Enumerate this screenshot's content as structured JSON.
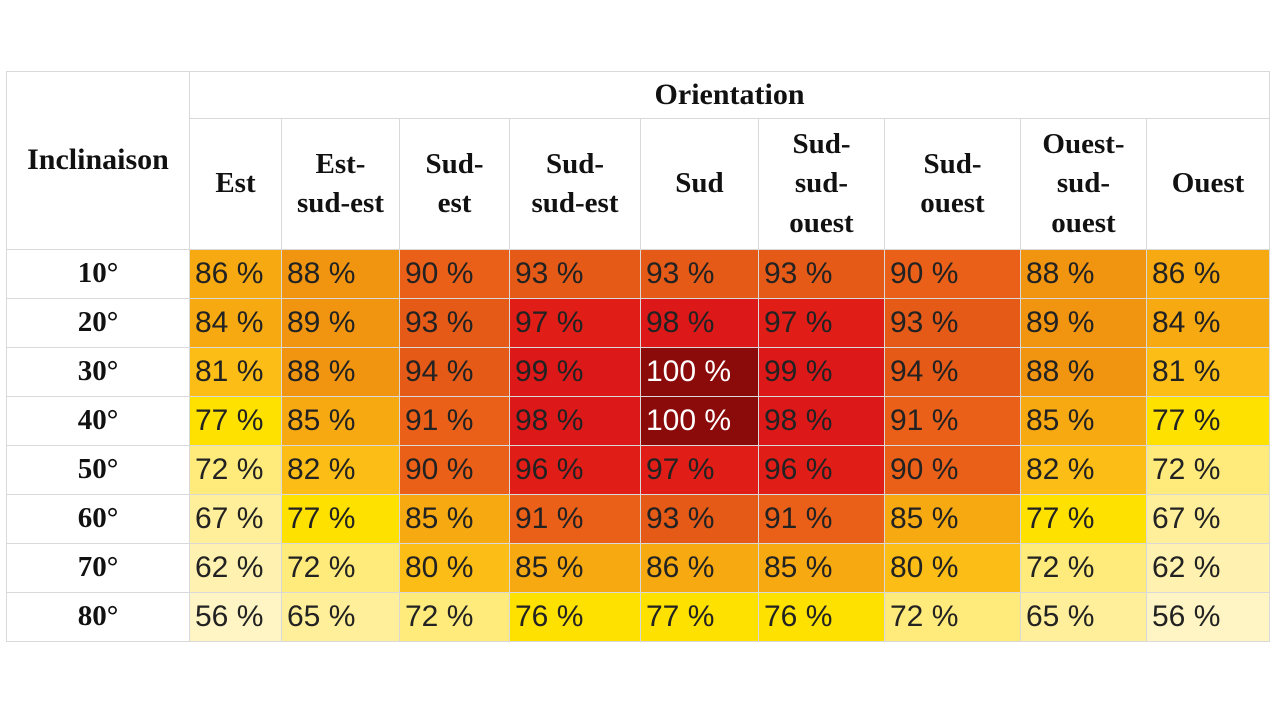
{
  "chart_data": {
    "type": "heatmap",
    "title": "",
    "row_header": "Inclinaison",
    "column_group_header": "Orientation",
    "columns": [
      "Est",
      "Est-\nsud-est",
      "Sud-\nest",
      "Sud-\nsud-est",
      "Sud",
      "Sud-\nsud-\nouest",
      "Sud-\nouest",
      "Ouest-\nsud-\nouest",
      "Ouest"
    ],
    "rows": [
      "10°",
      "20°",
      "30°",
      "40°",
      "50°",
      "60°",
      "70°",
      "80°"
    ],
    "unit": "%",
    "values": [
      [
        86,
        88,
        90,
        93,
        93,
        93,
        90,
        88,
        86
      ],
      [
        84,
        89,
        93,
        97,
        98,
        97,
        93,
        89,
        84
      ],
      [
        81,
        88,
        94,
        99,
        100,
        99,
        94,
        88,
        81
      ],
      [
        77,
        85,
        91,
        98,
        100,
        98,
        91,
        85,
        77
      ],
      [
        72,
        82,
        90,
        96,
        97,
        96,
        90,
        82,
        72
      ],
      [
        67,
        77,
        85,
        91,
        93,
        91,
        85,
        77,
        67
      ],
      [
        62,
        72,
        80,
        85,
        86,
        85,
        80,
        72,
        62
      ],
      [
        56,
        65,
        72,
        76,
        77,
        76,
        72,
        65,
        56
      ]
    ],
    "color_scale": [
      {
        "value": 56,
        "color": "#fff5c4"
      },
      {
        "value": 62,
        "color": "#fff1b0"
      },
      {
        "value": 67,
        "color": "#ffee9a"
      },
      {
        "value": 72,
        "color": "#ffeb7c"
      },
      {
        "value": 77,
        "color": "#ffe100"
      },
      {
        "value": 80,
        "color": "#fcbd16"
      },
      {
        "value": 85,
        "color": "#f6a911"
      },
      {
        "value": 88,
        "color": "#f19510"
      },
      {
        "value": 90,
        "color": "#eb6018"
      },
      {
        "value": 93,
        "color": "#e65a17"
      },
      {
        "value": 96,
        "color": "#e01d17"
      },
      {
        "value": 99,
        "color": "#dd1818"
      },
      {
        "value": 100,
        "color": "#8b0a0a"
      }
    ],
    "text_color": "#222222",
    "text_color_max": "#ffffff"
  }
}
